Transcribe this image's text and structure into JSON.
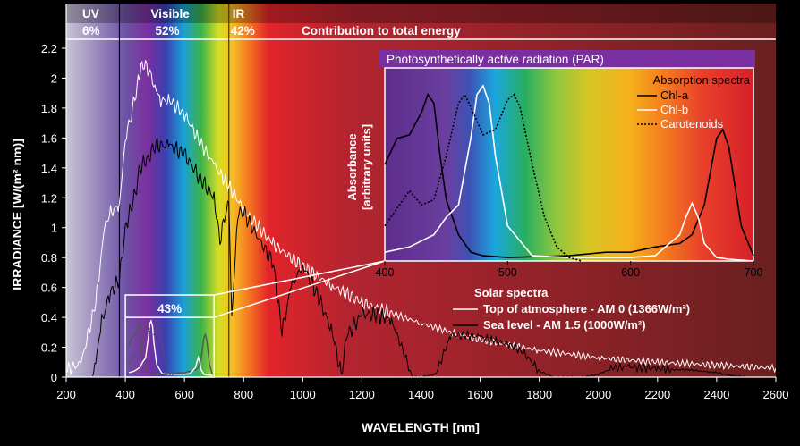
{
  "chart_data": {
    "type": "line",
    "title": "Contribution to total energy",
    "xlabel": "WAVELENGTH [nm]",
    "ylabel": "IRRADIANCE [W/(m² nm)]",
    "xlim": [
      200,
      2600
    ],
    "ylim": [
      0,
      2.2
    ],
    "x_ticks": [
      200,
      400,
      600,
      800,
      1000,
      1200,
      1400,
      1600,
      1800,
      2000,
      2200,
      2400,
      2600
    ],
    "y_ticks": [
      0,
      0.2,
      0.4,
      0.6,
      0.8,
      1,
      1.2,
      1.4,
      1.6,
      1.8,
      2,
      2.2
    ],
    "bands": [
      {
        "name": "UV",
        "percent": "6%",
        "from": 200,
        "to": 380
      },
      {
        "name": "Visible",
        "percent": "52%",
        "from": 380,
        "to": 750
      },
      {
        "name": "IR",
        "percent": "42%",
        "from": 750,
        "to": 2600
      }
    ],
    "par_box_label": "43%",
    "legend_title": "Solar spectra",
    "series": [
      {
        "name": "Top of atmosphere - AM 0 (1366W/m²)",
        "color": "#ffffff",
        "x": [
          200,
          250,
          300,
          330,
          350,
          380,
          400,
          420,
          440,
          450,
          460,
          480,
          500,
          520,
          550,
          600,
          650,
          700,
          750,
          800,
          900,
          1000,
          1100,
          1200,
          1300,
          1400,
          1500,
          1600,
          1800,
          2000,
          2200,
          2400,
          2600
        ],
        "y": [
          0.05,
          0.09,
          0.5,
          1.0,
          1.1,
          1.15,
          1.6,
          1.75,
          1.95,
          2.05,
          2.1,
          2.05,
          1.95,
          1.85,
          1.85,
          1.76,
          1.58,
          1.42,
          1.28,
          1.12,
          0.89,
          0.74,
          0.61,
          0.5,
          0.43,
          0.36,
          0.3,
          0.25,
          0.18,
          0.13,
          0.1,
          0.08,
          0.06
        ]
      },
      {
        "name": "Sea level - AM 1.5 (1000W/m²)",
        "color": "#000000",
        "x": [
          290,
          300,
          320,
          350,
          380,
          400,
          430,
          450,
          480,
          500,
          550,
          600,
          650,
          700,
          720,
          750,
          760,
          780,
          800,
          900,
          930,
          960,
          1000,
          1050,
          1100,
          1130,
          1150,
          1200,
          1250,
          1300,
          1350,
          1370,
          1400,
          1450,
          1500,
          1550,
          1600,
          1650,
          1700,
          1750,
          1800,
          1850,
          1900,
          1950,
          2000,
          2050,
          2100,
          2150,
          2200,
          2250,
          2300,
          2350,
          2400,
          2450,
          2500
        ],
        "y": [
          0,
          0.1,
          0.37,
          0.57,
          0.65,
          1.0,
          1.2,
          1.4,
          1.48,
          1.55,
          1.55,
          1.49,
          1.34,
          1.2,
          0.92,
          1.2,
          0.4,
          1.1,
          1.1,
          0.76,
          0.3,
          0.6,
          0.75,
          0.55,
          0.3,
          0.02,
          0.28,
          0.42,
          0.42,
          0.38,
          0.12,
          0.0,
          0.0,
          0.02,
          0.28,
          0.28,
          0.27,
          0.24,
          0.22,
          0.16,
          0.04,
          0.0,
          0.0,
          0.0,
          0.02,
          0.06,
          0.07,
          0.06,
          0.06,
          0.05,
          0.05,
          0.04,
          0.03,
          0.01,
          0.0
        ]
      }
    ],
    "inset": {
      "title": "Photosynthetically active radiation (PAR)",
      "ylabel_line1": "Absorbance",
      "ylabel_line2": "[arbitrary units]",
      "xlim": [
        400,
        700
      ],
      "x_ticks": [
        400,
        500,
        600,
        700
      ],
      "legend_title": "Absorption spectra",
      "series": [
        {
          "name": "Chl-a",
          "style": "solid-black",
          "x": [
            400,
            410,
            420,
            430,
            435,
            440,
            445,
            450,
            460,
            470,
            480,
            500,
            550,
            580,
            600,
            620,
            640,
            650,
            660,
            670,
            675,
            680,
            690,
            700
          ],
          "y": [
            0.55,
            0.7,
            0.72,
            0.85,
            0.95,
            0.9,
            0.6,
            0.35,
            0.15,
            0.05,
            0.03,
            0.02,
            0.03,
            0.05,
            0.05,
            0.08,
            0.1,
            0.15,
            0.32,
            0.7,
            0.75,
            0.65,
            0.2,
            0.03
          ]
        },
        {
          "name": "Chl-b",
          "style": "solid-white",
          "x": [
            400,
            420,
            440,
            450,
            460,
            470,
            475,
            480,
            485,
            490,
            500,
            520,
            550,
            600,
            620,
            640,
            645,
            650,
            655,
            660,
            670,
            680,
            700
          ],
          "y": [
            0.05,
            0.08,
            0.15,
            0.25,
            0.32,
            0.7,
            0.95,
            1.0,
            0.9,
            0.6,
            0.2,
            0.03,
            0.02,
            0.02,
            0.03,
            0.15,
            0.25,
            0.33,
            0.25,
            0.1,
            0.02,
            0.01,
            0.0
          ]
        },
        {
          "name": "Carotenoids",
          "style": "dotted-black",
          "x": [
            400,
            410,
            420,
            430,
            440,
            450,
            460,
            465,
            470,
            480,
            490,
            500,
            505,
            510,
            520,
            530,
            540,
            550,
            560
          ],
          "y": [
            0.2,
            0.3,
            0.4,
            0.32,
            0.35,
            0.6,
            0.9,
            0.95,
            0.88,
            0.72,
            0.75,
            0.92,
            0.95,
            0.88,
            0.55,
            0.25,
            0.08,
            0.02,
            0.0
          ]
        }
      ]
    }
  }
}
